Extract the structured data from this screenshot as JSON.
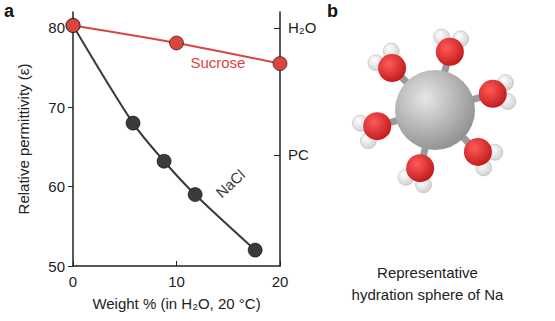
{
  "chart_data": {
    "type": "line",
    "panel": "a",
    "x_label": "Weight % (in H₂O, 20 °C)",
    "y_label": "Relative permittivity (ε)",
    "xlim": [
      0,
      20
    ],
    "xticks": [
      0,
      10,
      20
    ],
    "ylim": [
      50,
      82
    ],
    "yticks": [
      50,
      60,
      70,
      80
    ],
    "y2lim": [
      50,
      82
    ],
    "y2ticks": [
      {
        "value": 80,
        "label": "H₂O"
      },
      {
        "value": 64,
        "label": "PC"
      }
    ],
    "grid": false,
    "series": [
      {
        "name": "Sucrose",
        "color": "#d9443f",
        "marker": "circle",
        "line_style": "solid",
        "x": [
          0,
          10,
          20
        ],
        "values": [
          80.3,
          78.1,
          75.5
        ]
      },
      {
        "name": "NaCl",
        "color": "#3a3a3a",
        "marker": "circle",
        "line_style": "solid",
        "x": [
          0,
          5.8,
          8.8,
          11.8,
          17.6
        ],
        "values": [
          80.3,
          68,
          63.2,
          59,
          52
        ]
      }
    ]
  },
  "diagram": {
    "panel": "b",
    "caption_lines": [
      "Representative",
      "hydration sphere of Na"
    ]
  }
}
